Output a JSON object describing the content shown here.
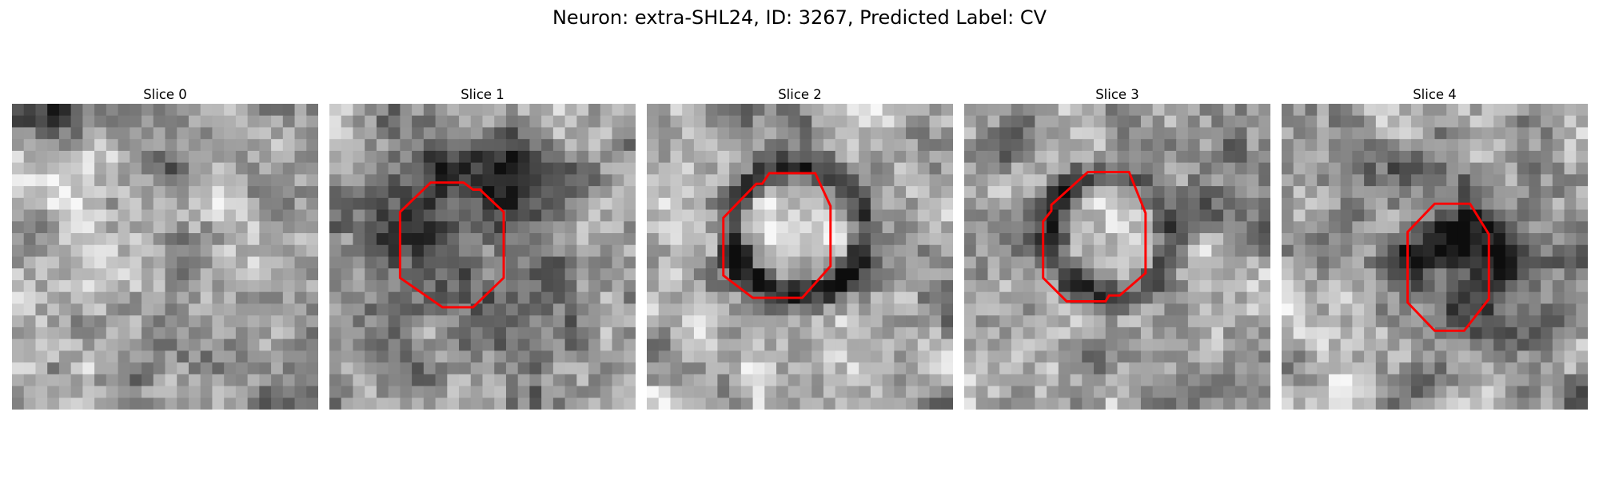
{
  "figure": {
    "title": "Neuron: extra-SHL24, ID: 3267, Predicted Label: CV"
  },
  "panels": [
    {
      "title": "Slice 0",
      "outline": false
    },
    {
      "title": "Slice 1",
      "outline": true
    },
    {
      "title": "Slice 2",
      "outline": true
    },
    {
      "title": "Slice 3",
      "outline": true
    },
    {
      "title": "Slice 4",
      "outline": true
    }
  ],
  "colors": {
    "outline": "#ff0000",
    "background": "#ffffff"
  }
}
